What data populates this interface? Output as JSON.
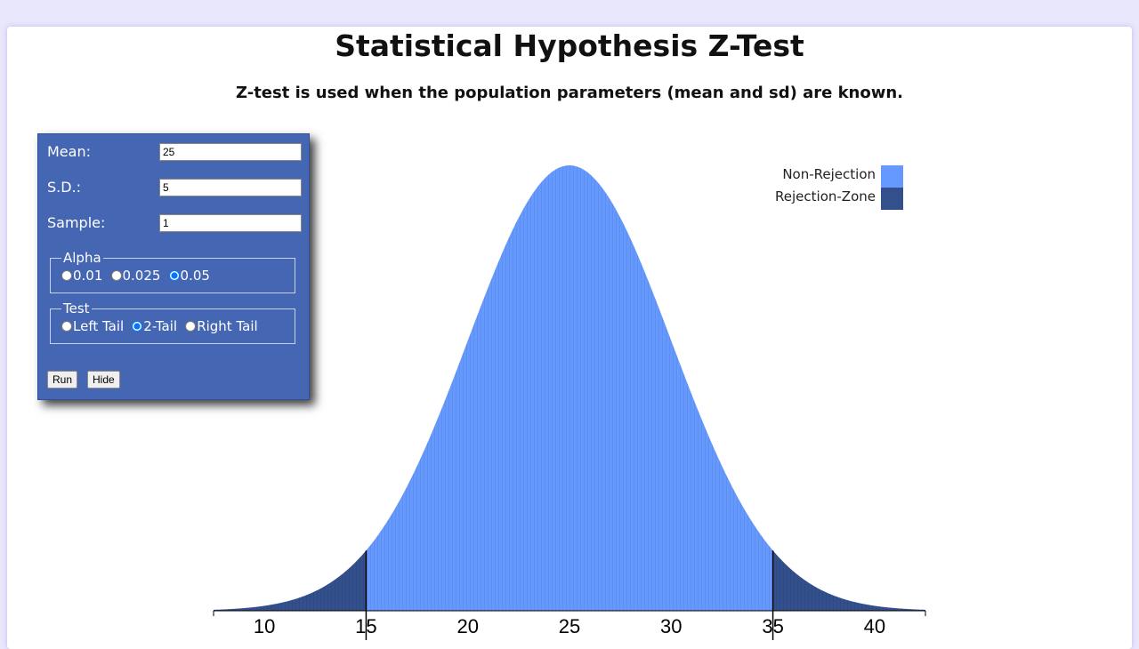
{
  "header": {
    "title": "Statistical Hypothesis Z-Test",
    "subtitle": "Z-test is used when the population parameters (mean and sd) are known."
  },
  "panel": {
    "mean": {
      "label": "Mean:",
      "value": "25"
    },
    "sd": {
      "label": "S.D.:",
      "value": "5"
    },
    "sample": {
      "label": "Sample:",
      "value": "1"
    },
    "alpha": {
      "legend": "Alpha",
      "options": [
        "0.01",
        "0.025",
        "0.05"
      ],
      "selected": "0.05"
    },
    "test": {
      "legend": "Test",
      "options": [
        "Left Tail",
        "2-Tail",
        "Right Tail"
      ],
      "selected": "2-Tail"
    },
    "run_label": "Run",
    "hide_label": "Hide"
  },
  "chart_data": {
    "type": "area",
    "distribution": "normal",
    "mean": 25,
    "sd": 5,
    "xlim": [
      7.5,
      42.5
    ],
    "x_ticks": [
      10,
      15,
      20,
      25,
      30,
      35,
      40
    ],
    "critical_values": [
      15,
      35
    ],
    "legend": {
      "placement": "top-right",
      "entries": [
        {
          "name": "Non-Rejection",
          "color": "#6699ff"
        },
        {
          "name": "Rejection-Zone",
          "color": "#33508c"
        }
      ]
    }
  }
}
